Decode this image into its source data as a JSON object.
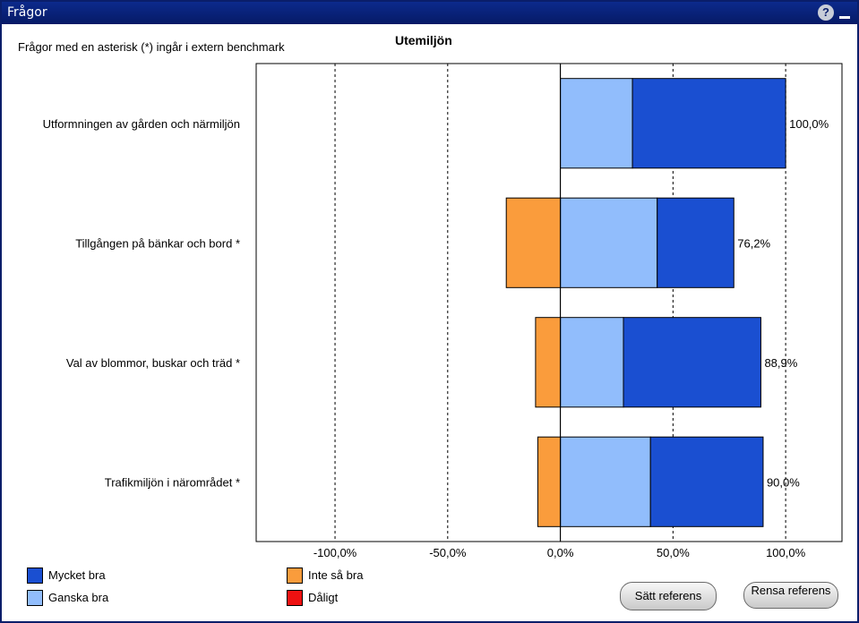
{
  "window": {
    "title": "Frågor"
  },
  "note": "Frågor med en asterisk (*) ingår i extern benchmark",
  "chart_data": {
    "type": "bar",
    "orientation": "horizontal",
    "stacked": "diverging",
    "title": "Utemiljön",
    "xlim": [
      -135,
      125
    ],
    "xticks": [
      -100,
      -50,
      0,
      50,
      100
    ],
    "xtick_labels": [
      "-100,0%",
      "-50,0%",
      "0,0%",
      "50,0%",
      "100,0%"
    ],
    "categories": [
      "Utformningen av gården och närmiljön",
      "Tillgången på bänkar och bord *",
      "Val av blommor, buskar och träd *",
      "Trafikmiljön i närområdet *"
    ],
    "series": [
      {
        "name": "Mycket bra",
        "color": "#1a4fd1",
        "values": [
          68,
          34,
          61,
          50
        ]
      },
      {
        "name": "Ganska bra",
        "color": "#91bdfc",
        "values": [
          32,
          43,
          28,
          40
        ]
      },
      {
        "name": "Inte så bra",
        "color": "#fa9c3c",
        "values": [
          0,
          -24,
          -11,
          -10
        ]
      },
      {
        "name": "Dåligt",
        "color": "#ee1111",
        "values": [
          0,
          0,
          0,
          0
        ]
      }
    ],
    "data_labels": [
      "100,0%",
      "76,2%",
      "88,9%",
      "90,0%"
    ],
    "grid": "dashed vertical"
  },
  "buttons": {
    "set_reference": "Sätt referens",
    "clear_reference": "Rensa referens"
  }
}
